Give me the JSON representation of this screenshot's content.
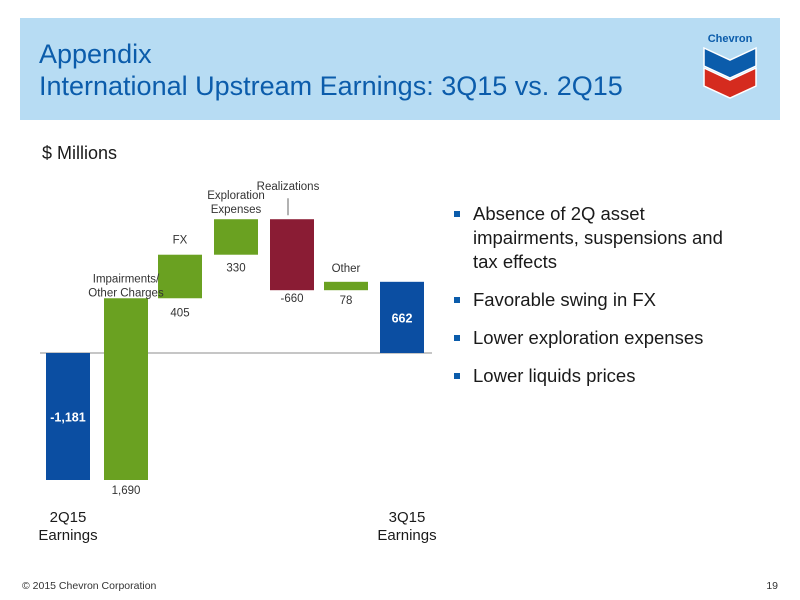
{
  "header": {
    "title_line1": "Appendix",
    "title_line2": "International Upstream Earnings: 3Q15 vs. 2Q15",
    "logo_text": "Chevron"
  },
  "units_label": "$ Millions",
  "colors": {
    "header_bg": "#b7dcf3",
    "title": "#0b5cab",
    "total_bar": "#0b4ea2",
    "increase_bar": "#6aa121",
    "decrease_bar": "#8a1c34",
    "bullet": "#0b5cab"
  },
  "chart_data": {
    "type": "bar",
    "subtype": "waterfall",
    "ylabel": "$ Millions",
    "steps": [
      {
        "label": "2Q15\nEarnings",
        "value": -1181,
        "kind": "total",
        "value_label": "-1,181",
        "label_style": "axis"
      },
      {
        "label": "Impairments/\nOther Charges",
        "value": 1690,
        "kind": "increase",
        "value_label": "1,690"
      },
      {
        "label": "FX",
        "value": 405,
        "kind": "increase",
        "value_label": "405"
      },
      {
        "label": "Exploration\nExpenses",
        "value": 330,
        "kind": "increase",
        "value_label": "330"
      },
      {
        "label": "Realizations",
        "value": -660,
        "kind": "decrease",
        "value_label": "-660"
      },
      {
        "label": "Other",
        "value": 78,
        "kind": "increase",
        "value_label": "78"
      },
      {
        "label": "3Q15\nEarnings",
        "value": 662,
        "kind": "total",
        "value_label": "662",
        "label_style": "axis"
      }
    ],
    "ylim": [
      -1200,
      1300
    ],
    "grid": false,
    "legend": "none"
  },
  "bullets": [
    "Absence of 2Q asset impairments, suspensions and tax effects",
    "Favorable swing in FX",
    "Lower exploration expenses",
    "Lower liquids prices"
  ],
  "footer": {
    "copyright": "© 2015 Chevron Corporation",
    "page_number": "19"
  }
}
